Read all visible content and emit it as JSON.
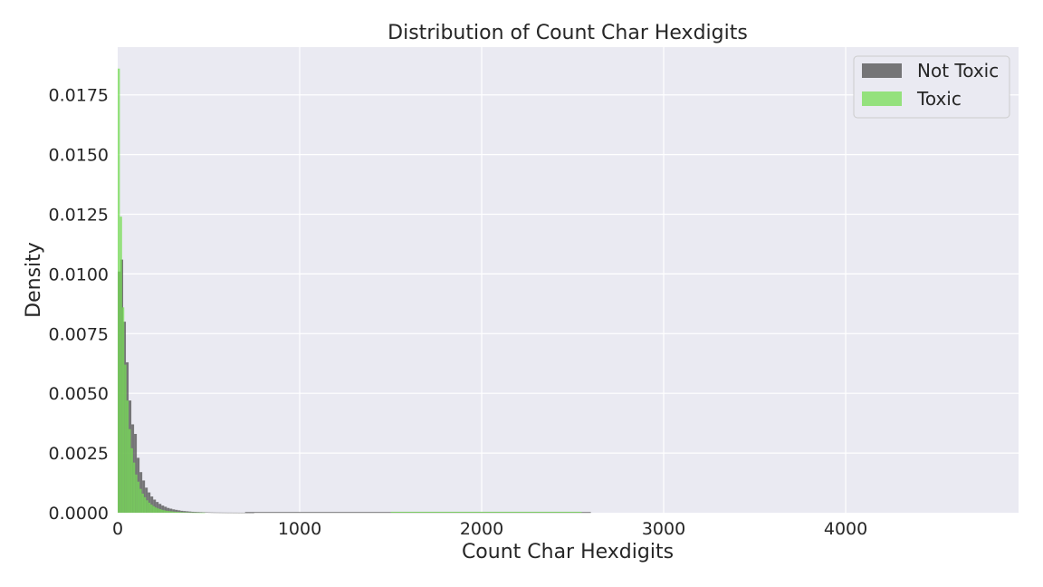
{
  "chart_data": {
    "type": "histogram",
    "title": "Distribution of Count Char Hexdigits",
    "xlabel": "Count Char Hexdigits",
    "ylabel": "Density",
    "xlim": [
      0,
      4950
    ],
    "ylim": [
      0,
      0.0195
    ],
    "x_ticks": [
      "0",
      "1000",
      "2000",
      "3000",
      "4000"
    ],
    "x_tick_values": [
      0,
      1000,
      2000,
      3000,
      4000
    ],
    "y_ticks": [
      "0.0000",
      "0.0025",
      "0.0050",
      "0.0075",
      "0.0100",
      "0.0125",
      "0.0150",
      "0.0175"
    ],
    "y_tick_values": [
      0,
      0.0025,
      0.005,
      0.0075,
      0.01,
      0.0125,
      0.015,
      0.0175
    ],
    "grid": true,
    "legend_position": "top-right",
    "background_color": "#eaeaf2",
    "series": [
      {
        "name": "Not Toxic",
        "color": "#4d4d4d",
        "opacity": 0.75,
        "bin_width": 15,
        "bins_start": 0,
        "values": [
          0.0101,
          0.0106,
          0.008,
          0.0063,
          0.0047,
          0.0037,
          0.0033,
          0.0023,
          0.0017,
          0.00135,
          0.00105,
          0.00085,
          0.00068,
          0.00055,
          0.00045,
          0.00037,
          0.0003,
          0.00025,
          0.0002,
          0.00017,
          0.00014,
          0.00012,
          0.0001,
          8e-05,
          7e-05,
          6e-05,
          5e-05,
          4e-05,
          3.5e-05,
          3e-05,
          2.5e-05,
          2e-05,
          1.8e-05,
          1.5e-05,
          1.2e-05,
          1e-05,
          9e-06,
          8e-06,
          7e-06,
          6e-06,
          5e-06,
          5e-06,
          4e-06,
          4e-06,
          3e-06,
          3e-06,
          3e-06,
          2e-06,
          2e-06,
          2e-06
        ]
      },
      {
        "name": "Toxic",
        "color": "#77dd55",
        "opacity": 0.75,
        "bin_width": 12,
        "bins_start": 0,
        "values": [
          0.0186,
          0.0124,
          0.0086,
          0.0062,
          0.0047,
          0.0035,
          0.0027,
          0.0021,
          0.0016,
          0.0013,
          0.001,
          0.0008,
          0.00065,
          0.00052,
          0.00042,
          0.00034,
          0.00027,
          0.00022,
          0.00018,
          0.00015,
          0.00012,
          0.0001,
          8e-05,
          7e-05,
          6e-05,
          5e-05,
          4e-05,
          3.5e-05,
          3e-05,
          2.5e-05,
          2e-05,
          1.8e-05,
          1.5e-05,
          1.2e-05,
          1e-05,
          9e-06,
          8e-06,
          7e-06,
          6e-06,
          5e-06
        ]
      }
    ],
    "sparse_tail": {
      "Not Toxic": {
        "x_range": [
          700,
          2600
        ],
        "height": 3e-05
      },
      "Toxic": {
        "x_range": [
          1500,
          2550
        ],
        "height": 4e-05
      }
    }
  }
}
